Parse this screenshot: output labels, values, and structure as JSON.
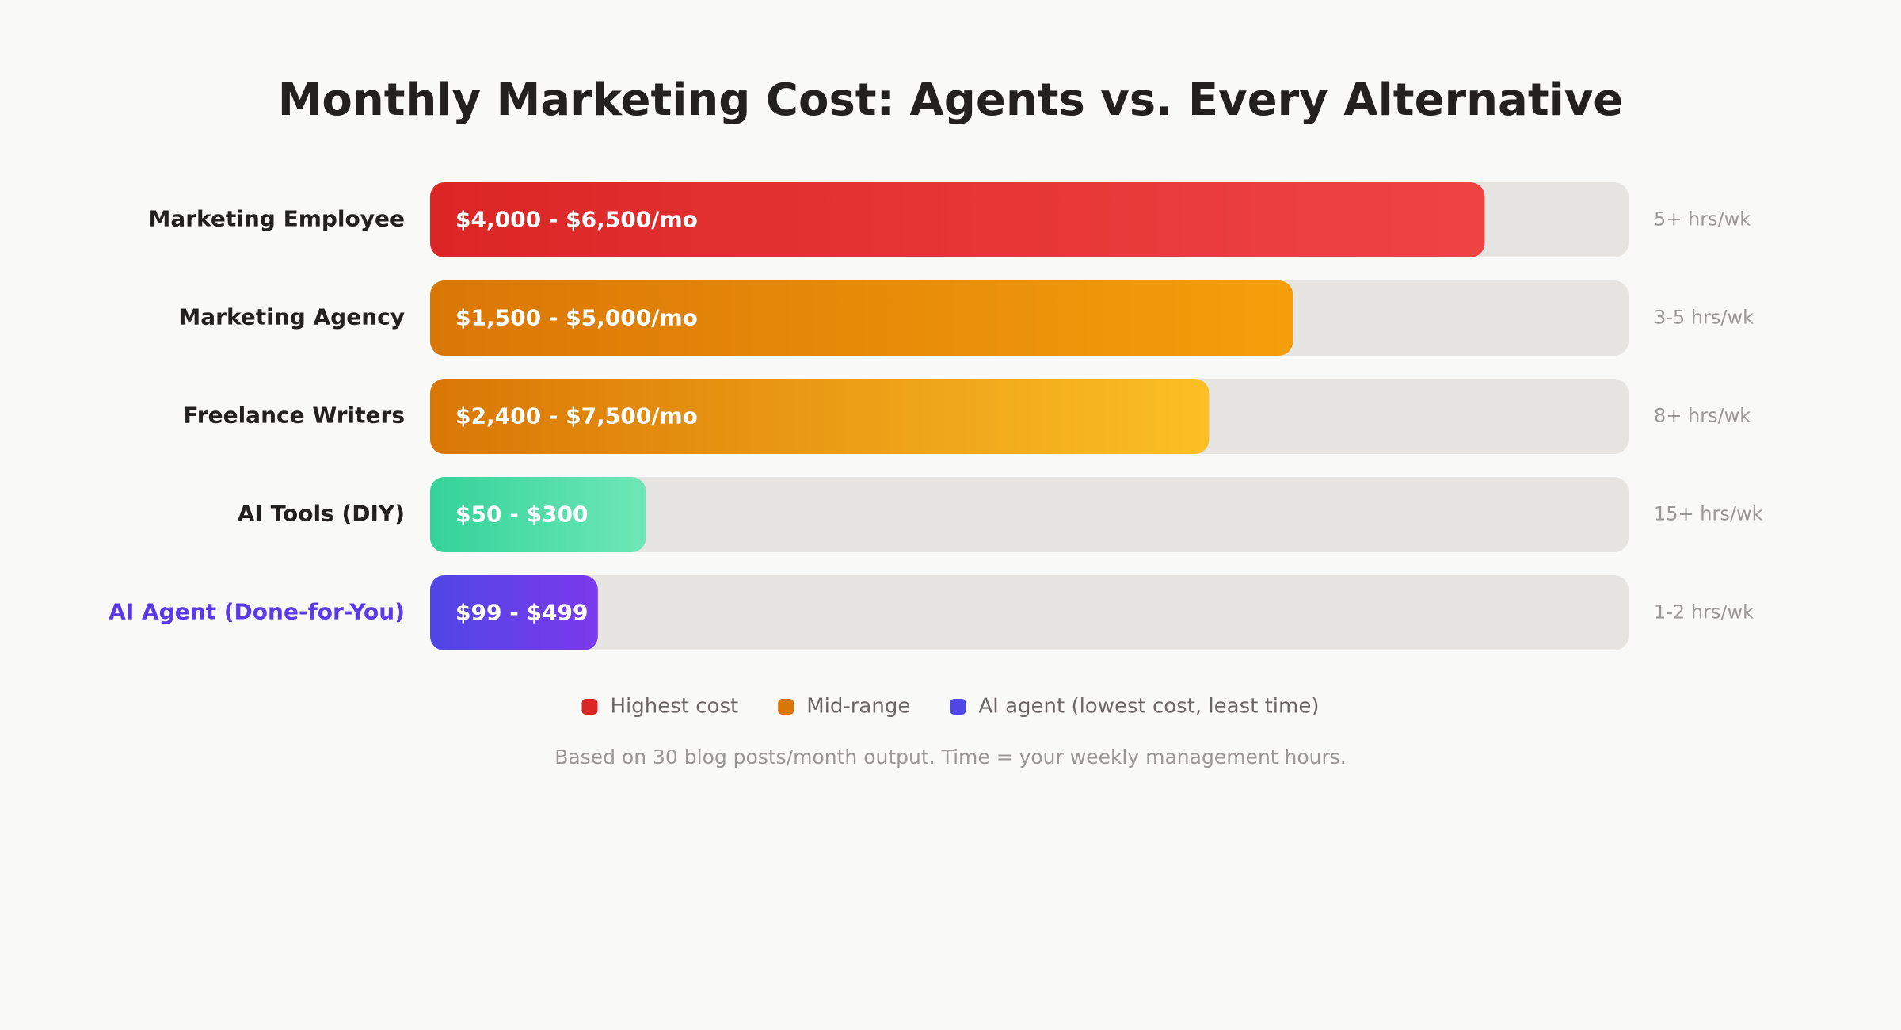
{
  "chart_data": {
    "type": "bar",
    "orientation": "horizontal",
    "title": "Monthly Marketing Cost: Agents vs. Every Alternative",
    "categories": [
      "Marketing Employee",
      "Marketing Agency",
      "Freelance Writers",
      "AI Tools (DIY)",
      "AI Agent (Done-for-You)"
    ],
    "values": [
      88,
      72,
      65,
      18,
      14
    ],
    "xlim": [
      0,
      100
    ],
    "cost_labels": [
      "$4,000 - $6,500/mo",
      "$1,500 - $5,000/mo",
      "$2,400 - $7,500/mo",
      "$50 - $300",
      "$99 - $499"
    ],
    "time_labels": [
      "5+ hrs/wk",
      "3-5 hrs/wk",
      "8+ hrs/wk",
      "15+ hrs/wk",
      "1-2 hrs/wk"
    ],
    "colors": [
      [
        "#dc2626",
        "#ef4444"
      ],
      [
        "#d97706",
        "#f59e0b"
      ],
      [
        "#d97706",
        "#fbbf24"
      ],
      [
        "#34d399",
        "#6ee7b7"
      ],
      [
        "#4f46e5",
        "#7c3aed"
      ]
    ],
    "highlight": 4,
    "highlight_color": "#5b3ae8",
    "legend": [
      {
        "name": "Highest cost",
        "color": "#dc2626"
      },
      {
        "name": "Mid-range",
        "color": "#d97706"
      },
      {
        "name": "AI agent (lowest cost, least time)",
        "color": "#4f46e5"
      }
    ],
    "footnote": "Based on 30 blog posts/month output. Time = your weekly management hours."
  }
}
